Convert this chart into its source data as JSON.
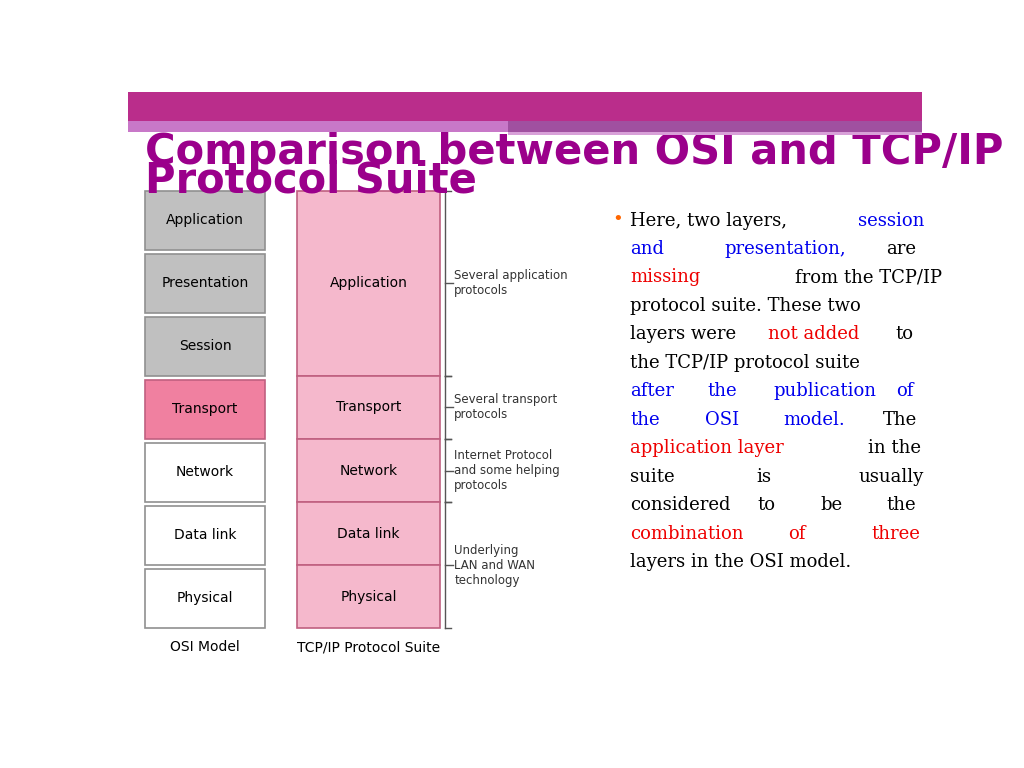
{
  "title_line1": "Comparison between OSI and TCP/IP",
  "title_line2": "Protocol Suite",
  "title_color": "#9B008B",
  "title_fontsize": 30,
  "bg_color": "#FFFFFF",
  "header_bar_color": "#BA2D8B",
  "header_stripe_color": "#C070C0",
  "osi_layers": [
    "Application",
    "Presentation",
    "Session",
    "Transport",
    "Network",
    "Data link",
    "Physical"
  ],
  "osi_colors": [
    "#C0C0C0",
    "#C0C0C0",
    "#C0C0C0",
    "#F080A0",
    "#FFFFFF",
    "#FFFFFF",
    "#FFFFFF"
  ],
  "osi_edge_colors": [
    "#909090",
    "#909090",
    "#909090",
    "#C06080",
    "#909090",
    "#909090",
    "#909090"
  ],
  "tcp_layers": [
    "Application",
    "Transport",
    "Network",
    "Data link",
    "Physical"
  ],
  "tcp_colors": [
    "#F5B8CC",
    "#F5B8CC",
    "#F5B8CC",
    "#F5B8CC",
    "#F5B8CC"
  ],
  "tcp_edge_colors": [
    "#C06080",
    "#C06080",
    "#C06080",
    "#C06080",
    "#C06080"
  ],
  "osi_label": "OSI Model",
  "tcp_label": "TCP/IP Protocol Suite",
  "bracket_labels": [
    "Several application\nprotocols",
    "Several transport\nprotocols",
    "Internet Protocol\nand some helping\nprotocols",
    "Underlying\nLAN and WAN\ntechnology"
  ],
  "bullet_color": "#FF6600",
  "black": "#000000",
  "blue": "#0000EE",
  "red": "#EE0000"
}
